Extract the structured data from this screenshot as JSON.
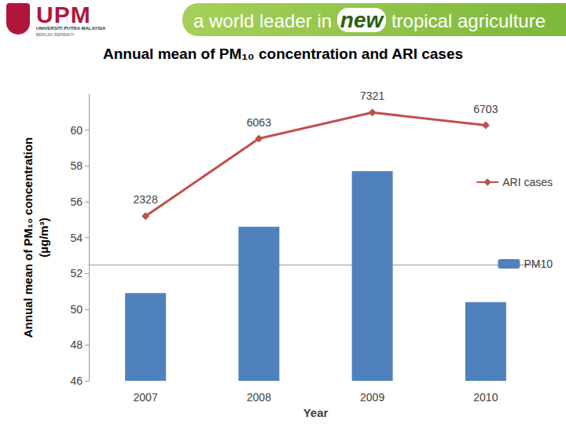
{
  "header": {
    "logo": "UPM",
    "logo_subtitle": "UNIVERSITI PUTRA MALAYSIA",
    "motto": "BERILMU BERBAKTI",
    "tagline": [
      "a world leader in",
      "new",
      "tropical agriculture"
    ]
  },
  "chart_data": {
    "type": "bar",
    "title": "Annual mean of PM₁₀ concentration and ARI cases",
    "xlabel": "Year",
    "ylabel": "Annual mean of PM₁₀ concentration\n(µg/m³)",
    "categories": [
      "2007",
      "2008",
      "2009",
      "2010"
    ],
    "series": [
      {
        "name": "ARI cases",
        "type": "line",
        "axis": "y2",
        "color": "#c0504d",
        "marker": "diamond",
        "data_labels": true,
        "values": [
          2328,
          6063,
          7321,
          6703
        ]
      },
      {
        "name": "PM10",
        "type": "bar",
        "color": "#4f81bd",
        "values": [
          50.9,
          54.6,
          57.7,
          50.4
        ]
      }
    ],
    "ylim": [
      46,
      62
    ],
    "yticks": [
      46,
      48,
      50,
      52,
      54,
      56,
      58,
      60
    ],
    "y2lim": [
      -5600,
      8200
    ],
    "grid": false,
    "legend": "right"
  }
}
